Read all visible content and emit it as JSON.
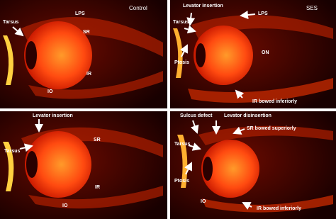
{
  "panels": [
    {
      "title": "Control",
      "labels": [
        "Tarsus",
        "LPS",
        "SR",
        "IR",
        "IO"
      ]
    },
    {
      "title": "SES",
      "labels": [
        "Levator insertion",
        "LPS",
        "Tarsus",
        "Ptosis",
        "ON",
        "IR bowed inferiorly"
      ]
    },
    {
      "labels": [
        "Levator insertion",
        "Tarsus",
        "SR",
        "IR",
        "IO"
      ]
    },
    {
      "labels": [
        "Sulcus defect",
        "Levator disinsertion",
        "SR bowed superiorly",
        "Tarsus",
        "Ptosis",
        "IO",
        "IR bowed inferiorly"
      ]
    }
  ]
}
